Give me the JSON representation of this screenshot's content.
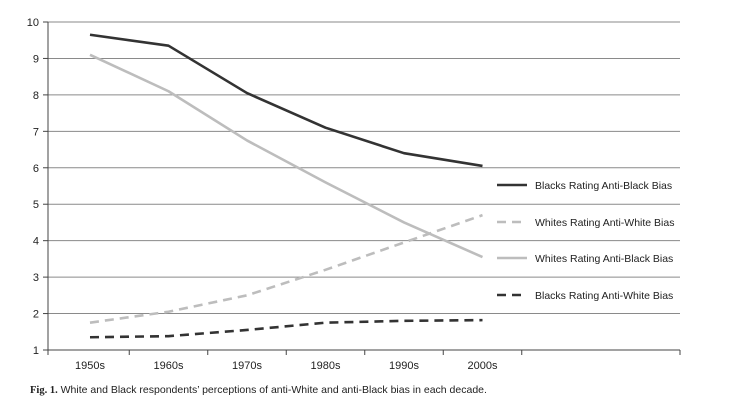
{
  "chart_data": {
    "type": "line",
    "categories": [
      "1950s",
      "1960s",
      "1970s",
      "1980s",
      "1990s",
      "2000s"
    ],
    "ylim": [
      1,
      10
    ],
    "yticks": [
      1,
      2,
      3,
      4,
      5,
      6,
      7,
      8,
      9,
      10
    ],
    "grid": true,
    "legend_position": "right",
    "series": [
      {
        "name": "Blacks Rating Anti-Black Bias",
        "values": [
          9.65,
          9.35,
          8.05,
          7.1,
          6.4,
          6.05
        ],
        "color": "#333333",
        "dash": "solid"
      },
      {
        "name": "Whites Rating Anti-White Bias",
        "values": [
          1.75,
          2.05,
          2.5,
          3.2,
          3.95,
          4.7
        ],
        "color": "#bdbdbd",
        "dash": "dashed"
      },
      {
        "name": "Whites Rating Anti-Black Bias",
        "values": [
          9.1,
          8.1,
          6.75,
          5.6,
          4.5,
          3.55
        ],
        "color": "#bdbdbd",
        "dash": "solid"
      },
      {
        "name": "Blacks Rating Anti-White Bias",
        "values": [
          1.35,
          1.38,
          1.55,
          1.75,
          1.8,
          1.82
        ],
        "color": "#333333",
        "dash": "dashed"
      }
    ]
  },
  "caption": {
    "label": "Fig. 1.",
    "text": "White and Black respondents’ perceptions of anti-White and anti-Black bias in each decade."
  }
}
